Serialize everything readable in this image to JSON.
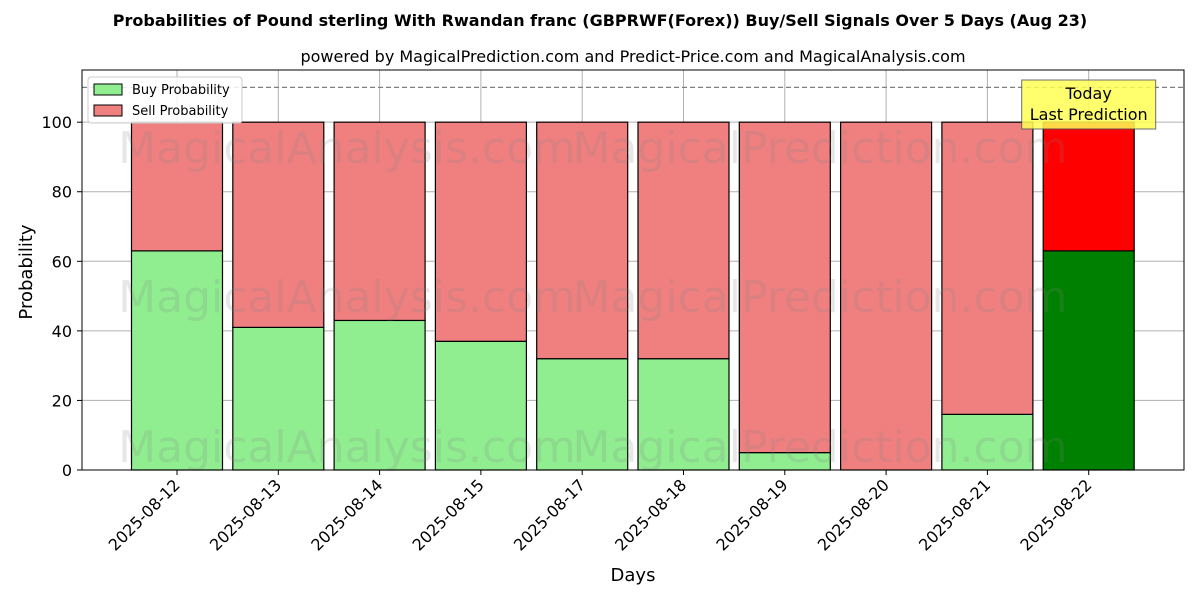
{
  "chart_data": {
    "type": "bar",
    "stacked": true,
    "title": "Probabilities of Pound sterling With Rwandan franc (GBPRWF(Forex)) Buy/Sell Signals Over 5 Days (Aug 23)",
    "subtitle": "powered by MagicalPrediction.com and Predict-Price.com and MagicalAnalysis.com",
    "xlabel": "Days",
    "ylabel": "Probability",
    "ylim": [
      0,
      115
    ],
    "yticks": [
      0,
      20,
      40,
      60,
      80,
      100
    ],
    "reference_line": 110,
    "grid": true,
    "legend_position": "top-left",
    "categories": [
      "2025-08-12",
      "2025-08-13",
      "2025-08-14",
      "2025-08-15",
      "2025-08-17",
      "2025-08-18",
      "2025-08-19",
      "2025-08-20",
      "2025-08-21",
      "2025-08-22"
    ],
    "series": [
      {
        "name": "Buy Probability",
        "values": [
          63,
          41,
          43,
          37,
          32,
          32,
          5,
          0,
          16,
          63
        ],
        "color": "#90ee90",
        "highlight_color": "#008000"
      },
      {
        "name": "Sell Probability",
        "values": [
          37,
          59,
          57,
          63,
          68,
          68,
          95,
          100,
          84,
          37
        ],
        "color": "#f08080",
        "highlight_color": "#ff0000"
      }
    ],
    "highlight_index": 9,
    "annotation": {
      "lines": [
        "Today",
        "Last Prediction"
      ],
      "background": "#ffff55"
    },
    "watermarks": [
      "MagicalAnalysis.com",
      "MagicalPrediction.com"
    ]
  }
}
